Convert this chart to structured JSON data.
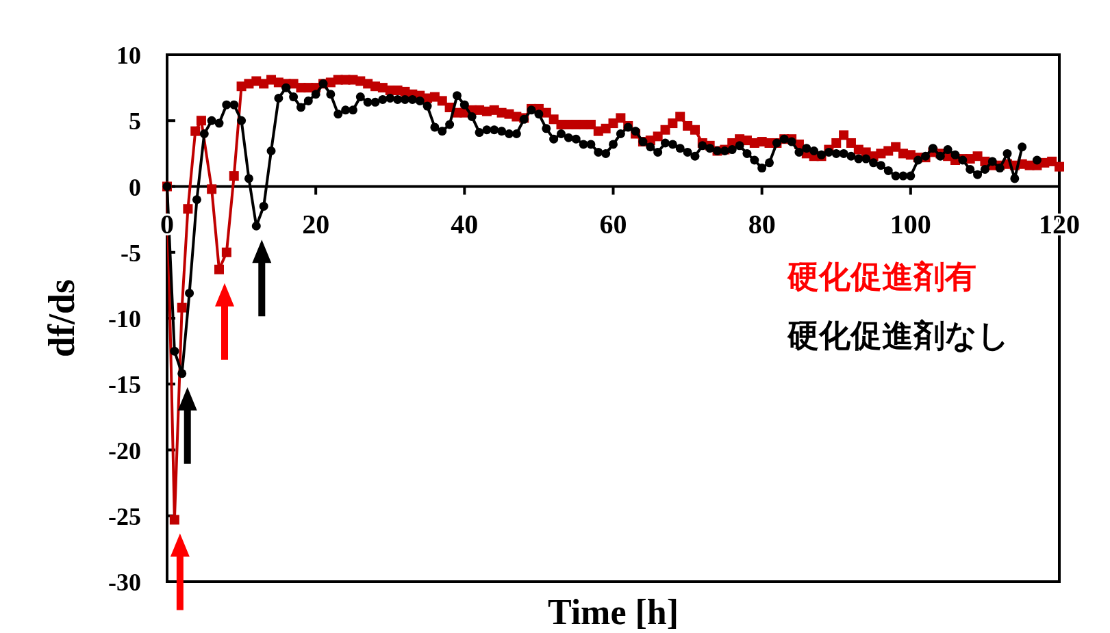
{
  "chart_data": {
    "type": "line",
    "xlabel": "Time [h]",
    "ylabel": "df/ds",
    "xlim": [
      0,
      120
    ],
    "xticks": [
      0,
      20,
      40,
      60,
      80,
      100,
      120
    ],
    "ylim": [
      -30,
      10
    ],
    "yticks": [
      -30,
      -25,
      -20,
      -15,
      -10,
      -5,
      0,
      5,
      10
    ],
    "grid": false,
    "legend": "right",
    "series": [
      {
        "name": "硬化促進剤有",
        "color": "#c00000",
        "marker": "square",
        "x": [
          0,
          1,
          2,
          2.8,
          3.8,
          4.6,
          6,
          7,
          8,
          9,
          10,
          11,
          12,
          13,
          14,
          15,
          16,
          17,
          18,
          19,
          20,
          21,
          22,
          23,
          24,
          25,
          26,
          27,
          28,
          29,
          30,
          31,
          32,
          33,
          34,
          35,
          36,
          37,
          38,
          39,
          40,
          41,
          42,
          43,
          44,
          45,
          46,
          47,
          48,
          49,
          50,
          51,
          52,
          53,
          54,
          55,
          56,
          57,
          58,
          59,
          60,
          61,
          62,
          63,
          64,
          65,
          66,
          67,
          68,
          69,
          70,
          71,
          72,
          73,
          74,
          75,
          76,
          77,
          78,
          79,
          80,
          81,
          82,
          83,
          84,
          85,
          86,
          87,
          88,
          89,
          90,
          91,
          92,
          93,
          94,
          95,
          96,
          97,
          98,
          99,
          100,
          101,
          102,
          103,
          104,
          105,
          106,
          107,
          108,
          109,
          110,
          111,
          112,
          113,
          114,
          115,
          116,
          117,
          118,
          119,
          120
        ],
        "values": [
          0,
          -25.3,
          -9.2,
          -1.7,
          4.2,
          5,
          -0.2,
          -6.3,
          -5,
          0.8,
          7.6,
          7.8,
          8,
          7.8,
          8.1,
          7.9,
          7.8,
          7.8,
          7.5,
          7.5,
          7.5,
          7.8,
          7.9,
          8.1,
          8.1,
          8.1,
          8,
          7.8,
          7.6,
          7.5,
          7.3,
          7.3,
          7.2,
          7,
          6.9,
          6.7,
          6.8,
          6.5,
          6,
          5.6,
          5.6,
          5.8,
          5.8,
          5.7,
          5.8,
          5.6,
          5.5,
          5.3,
          5.2,
          5.9,
          5.9,
          5.6,
          5.1,
          4.7,
          4.7,
          4.7,
          4.7,
          4.7,
          4.2,
          4.4,
          4.8,
          5.2,
          4.6,
          4,
          3.4,
          3.5,
          3.8,
          4.3,
          4.8,
          5.3,
          4.6,
          4.3,
          3.3,
          3.1,
          2.7,
          2.8,
          3.3,
          3.6,
          3.5,
          3.3,
          3.4,
          3.3,
          3.3,
          3.6,
          3.6,
          3.2,
          2.5,
          2.3,
          2.3,
          2.8,
          3.3,
          3.9,
          3.3,
          2.8,
          2.6,
          2.3,
          2.5,
          2.7,
          3,
          2.5,
          2.4,
          2.2,
          2.2,
          2.6,
          2.5,
          2.3,
          2,
          2.1,
          2.1,
          2.3,
          1.9,
          1.6,
          1.6,
          1.7,
          1.6,
          1.7,
          1.6,
          1.6,
          1.8,
          1.9,
          1.5
        ]
      },
      {
        "name": "硬化促進剤なし",
        "color": "#000000",
        "marker": "circle",
        "x": [
          0,
          1,
          2,
          3,
          4,
          5,
          6,
          7,
          8,
          9,
          10,
          11,
          12,
          13,
          14,
          15,
          16,
          17,
          18,
          19,
          20,
          21,
          22,
          23,
          24,
          25,
          26,
          27,
          28,
          29,
          30,
          31,
          32,
          33,
          34,
          35,
          36,
          37,
          38,
          39,
          40,
          41,
          42,
          43,
          44,
          45,
          46,
          47,
          48,
          49,
          50,
          51,
          52,
          53,
          54,
          55,
          56,
          57,
          58,
          59,
          60,
          61,
          62,
          63,
          64,
          65,
          66,
          67,
          68,
          69,
          70,
          71,
          72,
          73,
          74,
          75,
          76,
          77,
          78,
          79,
          80,
          81,
          82,
          83,
          84,
          85,
          86,
          87,
          88,
          89,
          90,
          91,
          92,
          93,
          94,
          95,
          96,
          97,
          98,
          99,
          100,
          101,
          102,
          103,
          104,
          105,
          106,
          107,
          108,
          109,
          110,
          111,
          112,
          113,
          114,
          115,
          116,
          117
        ],
        "values": [
          0,
          -12.5,
          -14.2,
          -8.1,
          -1,
          4,
          5,
          4.8,
          6.2,
          6.2,
          5,
          0.6,
          -3,
          -1.5,
          2.7,
          6.7,
          7.5,
          6.8,
          6,
          6.5,
          7,
          7.8,
          7,
          5.5,
          5.8,
          5.8,
          6.8,
          6.4,
          6.4,
          6.6,
          6.7,
          6.6,
          6.6,
          6.6,
          6.5,
          6.1,
          4.5,
          4.2,
          4.7,
          6.9,
          6.2,
          5.3,
          4.1,
          4.3,
          4.3,
          4.2,
          4,
          4,
          5.1,
          5.8,
          5.5,
          4.4,
          3.6,
          4,
          3.7,
          3.6,
          3.2,
          3.2,
          2.6,
          2.5,
          3.2,
          4,
          4.5,
          4.2,
          3.4,
          3,
          2.6,
          3.3,
          3.2,
          2.9,
          2.6,
          2.3,
          3.1,
          2.9,
          2.7,
          2.7,
          2.8,
          3.1,
          2.5,
          2,
          1.4,
          1.8,
          3.3,
          3.6,
          3.4,
          2.6,
          2.9,
          2.7,
          2.4,
          2.6,
          2.5,
          2.5,
          2.3,
          2.1,
          2.1,
          1.8,
          1.6,
          1.2,
          0.8,
          0.8,
          0.8,
          2,
          2.3,
          2.9,
          2.3,
          2.8,
          2.4,
          2,
          1.3,
          0.9,
          1.3,
          1.9,
          1.4,
          2.5,
          0.6,
          3,
          null,
          2
        ]
      }
    ]
  }
}
